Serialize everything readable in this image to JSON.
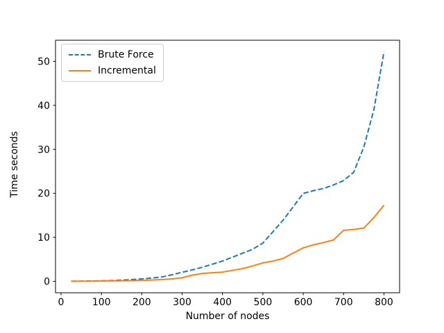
{
  "chart_data": {
    "type": "line",
    "title": "",
    "xlabel": "Number of nodes",
    "ylabel": "Time seconds",
    "x": [
      25,
      50,
      75,
      100,
      125,
      150,
      175,
      200,
      225,
      250,
      275,
      300,
      325,
      350,
      375,
      400,
      425,
      450,
      475,
      500,
      525,
      550,
      575,
      600,
      625,
      650,
      675,
      700,
      725,
      750,
      775,
      800
    ],
    "series": [
      {
        "name": "Brute Force",
        "color": "#1f77b4",
        "style": "dashed",
        "values": [
          0.02,
          0.05,
          0.08,
          0.12,
          0.18,
          0.28,
          0.4,
          0.55,
          0.75,
          1.0,
          1.5,
          2.05,
          2.6,
          3.2,
          3.9,
          4.6,
          5.5,
          6.4,
          7.3,
          8.7,
          11.3,
          13.9,
          16.9,
          20.0,
          20.6,
          21.1,
          21.9,
          22.9,
          24.8,
          30.5,
          39.0,
          52.2
        ]
      },
      {
        "name": "Incremental",
        "color": "#ff7f0e",
        "style": "solid",
        "values": [
          0.01,
          0.02,
          0.04,
          0.06,
          0.09,
          0.12,
          0.16,
          0.22,
          0.3,
          0.4,
          0.55,
          0.8,
          1.4,
          1.8,
          1.95,
          2.1,
          2.5,
          2.9,
          3.5,
          4.2,
          4.6,
          5.2,
          6.4,
          7.6,
          8.3,
          8.8,
          9.4,
          11.6,
          11.8,
          12.1,
          14.5,
          17.3
        ]
      }
    ],
    "xticks": [
      0,
      100,
      200,
      300,
      400,
      500,
      600,
      700,
      800
    ],
    "yticks": [
      0,
      10,
      20,
      30,
      40,
      50
    ],
    "xlim": [
      -13.75,
      838.75
    ],
    "ylim": [
      -2.6,
      54.8
    ],
    "grid": false,
    "legend_position": "upper left",
    "axis_color": "#000000",
    "background_color": "#ffffff"
  }
}
